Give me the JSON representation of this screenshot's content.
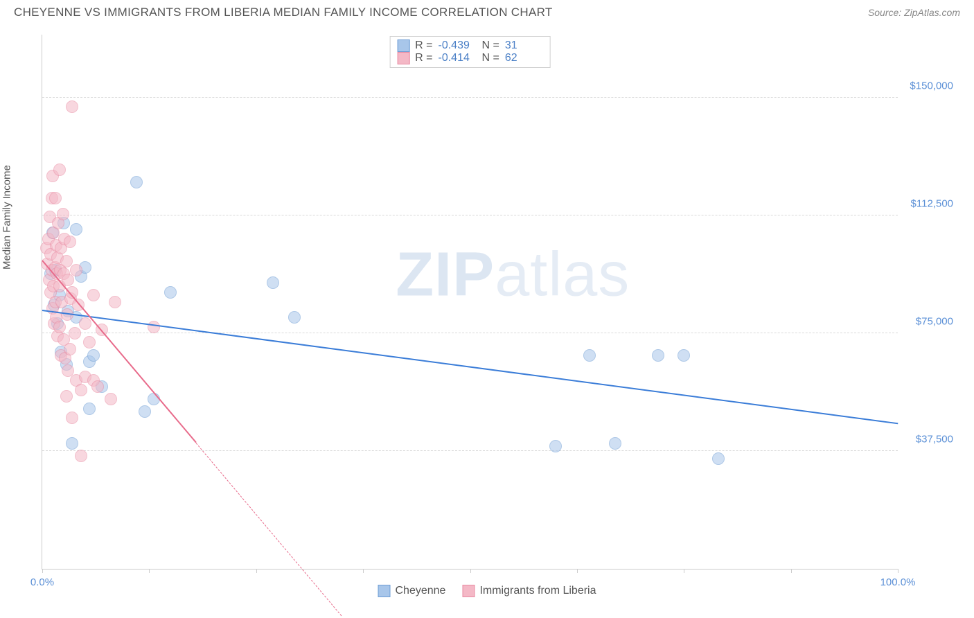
{
  "header": {
    "title": "CHEYENNE VS IMMIGRANTS FROM LIBERIA MEDIAN FAMILY INCOME CORRELATION CHART",
    "source": "Source: ZipAtlas.com"
  },
  "watermark": {
    "part1": "ZIP",
    "part2": "atlas"
  },
  "chart": {
    "type": "scatter",
    "ylabel": "Median Family Income",
    "background_color": "#ffffff",
    "grid_color": "#d8d8d8",
    "axis_color": "#cccccc",
    "label_color": "#5a8fd6",
    "xlim": [
      0,
      100
    ],
    "ylim": [
      0,
      170000
    ],
    "xtick_positions": [
      0,
      12.5,
      25,
      37.5,
      50,
      62.5,
      75,
      87.5,
      100
    ],
    "xtick_labels": {
      "0": "0.0%",
      "100": "100.0%"
    },
    "yticks": [
      37500,
      75000,
      112500,
      150000
    ],
    "ytick_labels": [
      "$37,500",
      "$75,000",
      "$112,500",
      "$150,000"
    ],
    "marker_radius": 9,
    "marker_opacity": 0.55,
    "trend_width": 2,
    "series": [
      {
        "name": "Cheyenne",
        "color_fill": "#a8c6ea",
        "color_stroke": "#6d9cd4",
        "trend_color": "#3b7dd8",
        "R": "-0.439",
        "N": "31",
        "trend": {
          "x1": 0,
          "y1": 82000,
          "x2": 100,
          "y2": 46000
        },
        "points": [
          {
            "x": 1.0,
            "y": 94000
          },
          {
            "x": 1.2,
            "y": 107000
          },
          {
            "x": 1.4,
            "y": 84000
          },
          {
            "x": 1.5,
            "y": 95000
          },
          {
            "x": 1.8,
            "y": 78000
          },
          {
            "x": 2.0,
            "y": 87000
          },
          {
            "x": 2.2,
            "y": 69000
          },
          {
            "x": 2.5,
            "y": 110000
          },
          {
            "x": 2.8,
            "y": 65000
          },
          {
            "x": 3.0,
            "y": 82000
          },
          {
            "x": 3.5,
            "y": 40000
          },
          {
            "x": 4.0,
            "y": 108000
          },
          {
            "x": 4.0,
            "y": 80000
          },
          {
            "x": 4.5,
            "y": 93000
          },
          {
            "x": 5.0,
            "y": 96000
          },
          {
            "x": 5.5,
            "y": 51000
          },
          {
            "x": 5.5,
            "y": 66000
          },
          {
            "x": 6.0,
            "y": 68000
          },
          {
            "x": 7.0,
            "y": 58000
          },
          {
            "x": 11.0,
            "y": 123000
          },
          {
            "x": 12.0,
            "y": 50000
          },
          {
            "x": 13.0,
            "y": 54000
          },
          {
            "x": 15.0,
            "y": 88000
          },
          {
            "x": 27.0,
            "y": 91000
          },
          {
            "x": 29.5,
            "y": 80000
          },
          {
            "x": 60.0,
            "y": 39000
          },
          {
            "x": 64.0,
            "y": 68000
          },
          {
            "x": 67.0,
            "y": 40000
          },
          {
            "x": 72.0,
            "y": 68000
          },
          {
            "x": 75.0,
            "y": 68000
          },
          {
            "x": 79.0,
            "y": 35000
          }
        ]
      },
      {
        "name": "Immigrants from Liberia",
        "color_fill": "#f4b8c6",
        "color_stroke": "#e88aa2",
        "trend_color": "#e86b8b",
        "R": "-0.414",
        "N": "62",
        "trend": {
          "x1": 0,
          "y1": 98000,
          "x2": 18,
          "y2": 40000
        },
        "trend_dash": {
          "x1": 18,
          "y1": 40000,
          "x2": 35,
          "y2": -15000
        },
        "points": [
          {
            "x": 0.5,
            "y": 102000
          },
          {
            "x": 0.6,
            "y": 97000
          },
          {
            "x": 0.7,
            "y": 105000
          },
          {
            "x": 0.8,
            "y": 92000
          },
          {
            "x": 0.9,
            "y": 112000
          },
          {
            "x": 1.0,
            "y": 88000
          },
          {
            "x": 1.0,
            "y": 100000
          },
          {
            "x": 1.1,
            "y": 118000
          },
          {
            "x": 1.1,
            "y": 95000
          },
          {
            "x": 1.2,
            "y": 83000
          },
          {
            "x": 1.2,
            "y": 125000
          },
          {
            "x": 1.3,
            "y": 90000
          },
          {
            "x": 1.3,
            "y": 107000
          },
          {
            "x": 1.4,
            "y": 78000
          },
          {
            "x": 1.5,
            "y": 96000
          },
          {
            "x": 1.5,
            "y": 118000
          },
          {
            "x": 1.5,
            "y": 85000
          },
          {
            "x": 1.6,
            "y": 103000
          },
          {
            "x": 1.6,
            "y": 80000
          },
          {
            "x": 1.7,
            "y": 94000
          },
          {
            "x": 1.8,
            "y": 74000
          },
          {
            "x": 1.8,
            "y": 99000
          },
          {
            "x": 1.9,
            "y": 110000
          },
          {
            "x": 2.0,
            "y": 77000
          },
          {
            "x": 2.0,
            "y": 90000
          },
          {
            "x": 2.0,
            "y": 127000
          },
          {
            "x": 2.1,
            "y": 95000
          },
          {
            "x": 2.2,
            "y": 102000
          },
          {
            "x": 2.2,
            "y": 68000
          },
          {
            "x": 2.3,
            "y": 85000
          },
          {
            "x": 2.4,
            "y": 113000
          },
          {
            "x": 2.5,
            "y": 73000
          },
          {
            "x": 2.5,
            "y": 94000
          },
          {
            "x": 2.6,
            "y": 105000
          },
          {
            "x": 2.7,
            "y": 67000
          },
          {
            "x": 2.8,
            "y": 98000
          },
          {
            "x": 2.8,
            "y": 55000
          },
          {
            "x": 2.9,
            "y": 81000
          },
          {
            "x": 3.0,
            "y": 63000
          },
          {
            "x": 3.0,
            "y": 92000
          },
          {
            "x": 3.2,
            "y": 70000
          },
          {
            "x": 3.2,
            "y": 104000
          },
          {
            "x": 3.3,
            "y": 86000
          },
          {
            "x": 3.5,
            "y": 88000
          },
          {
            "x": 3.5,
            "y": 48000
          },
          {
            "x": 3.5,
            "y": 147000
          },
          {
            "x": 3.8,
            "y": 75000
          },
          {
            "x": 4.0,
            "y": 60000
          },
          {
            "x": 4.0,
            "y": 95000
          },
          {
            "x": 4.2,
            "y": 84000
          },
          {
            "x": 4.5,
            "y": 57000
          },
          {
            "x": 4.5,
            "y": 36000
          },
          {
            "x": 5.0,
            "y": 78000
          },
          {
            "x": 5.0,
            "y": 61000
          },
          {
            "x": 5.5,
            "y": 72000
          },
          {
            "x": 6.0,
            "y": 60000
          },
          {
            "x": 6.0,
            "y": 87000
          },
          {
            "x": 6.5,
            "y": 58000
          },
          {
            "x": 7.0,
            "y": 76000
          },
          {
            "x": 8.0,
            "y": 54000
          },
          {
            "x": 8.5,
            "y": 85000
          },
          {
            "x": 13.0,
            "y": 77000
          }
        ]
      }
    ]
  },
  "legend_bottom": [
    {
      "label": "Cheyenne",
      "fill": "#a8c6ea",
      "stroke": "#6d9cd4"
    },
    {
      "label": "Immigrants from Liberia",
      "fill": "#f4b8c6",
      "stroke": "#e88aa2"
    }
  ]
}
